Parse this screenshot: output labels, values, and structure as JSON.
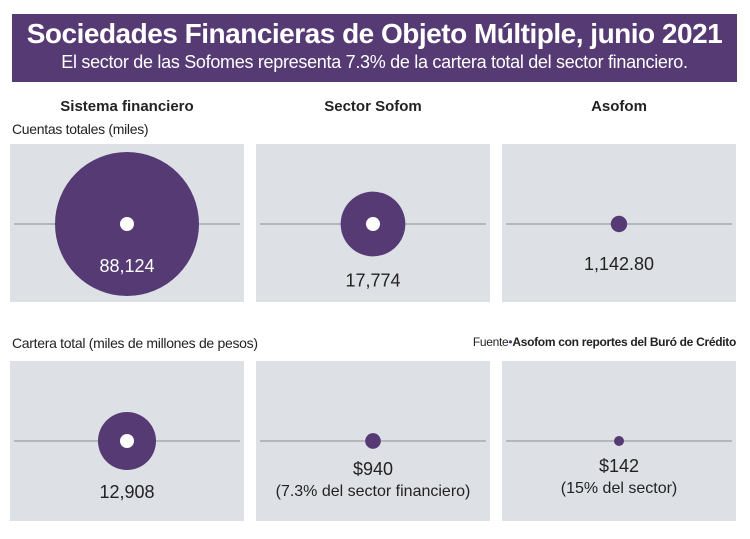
{
  "header": {
    "title": "Sociedades Financieras de Objeto Múltiple, junio 2021",
    "subtitle": "El sector de las Sofomes representa 7.3% de la cartera total del sector financiero."
  },
  "columns": [
    "Sistema financiero",
    "Sector Sofom",
    "Asofom"
  ],
  "source": {
    "label": "Fuente",
    "separator": "•",
    "text": "Asofom con reportes del Buró de Crédito"
  },
  "colors": {
    "accent": "#553a74",
    "panel": "#dde1e6",
    "line": "#8a8a8a"
  },
  "chart_data": [
    {
      "type": "bubble",
      "title": "Cuentas totales (miles)",
      "categories": [
        "Sistema financiero",
        "Sector Sofom",
        "Asofom"
      ],
      "values": [
        88124,
        17774,
        1142.8
      ],
      "labels": [
        [
          "88,124"
        ],
        [
          "17,774"
        ],
        [
          "1,142.80"
        ]
      ]
    },
    {
      "type": "bubble",
      "title": "Cartera total (miles de millones de pesos)",
      "categories": [
        "Sistema financiero",
        "Sector Sofom",
        "Asofom"
      ],
      "values": [
        12908,
        940,
        142
      ],
      "labels": [
        [
          "12,908"
        ],
        [
          "$940",
          "(7.3% del sector financiero)"
        ],
        [
          "$142",
          "(15% del sector)"
        ]
      ]
    }
  ]
}
